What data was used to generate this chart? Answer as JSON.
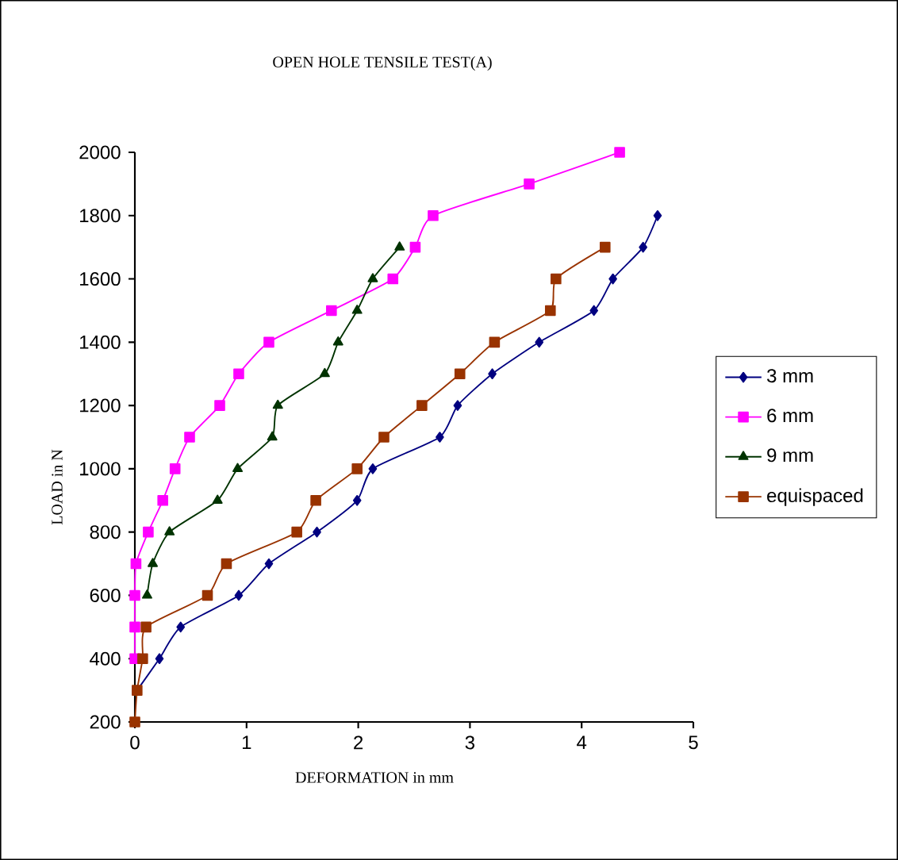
{
  "chart_data": {
    "type": "line",
    "title": "OPEN HOLE TENSILE TEST(A)",
    "xlabel": "DEFORMATION in mm",
    "ylabel": "LOAD in N",
    "xlim": [
      0,
      5
    ],
    "ylim": [
      200,
      2000
    ],
    "xticks": [
      0,
      1,
      2,
      3,
      4,
      5
    ],
    "yticks": [
      200,
      400,
      600,
      800,
      1000,
      1200,
      1400,
      1600,
      1800,
      2000
    ],
    "legend": "right",
    "grid": false,
    "series": [
      {
        "name": "3 mm",
        "color": "#000080",
        "marker": "diamond",
        "x": [
          0.02,
          0.22,
          0.41,
          0.93,
          1.2,
          1.63,
          1.99,
          2.13,
          2.73,
          2.89,
          3.2,
          3.62,
          4.11,
          4.28,
          4.55,
          4.68
        ],
        "values": [
          300,
          400,
          500,
          600,
          700,
          800,
          900,
          1000,
          1100,
          1200,
          1300,
          1400,
          1500,
          1600,
          1700,
          1800
        ]
      },
      {
        "name": "6 mm",
        "color": "#ff00ff",
        "marker": "square",
        "x": [
          0,
          0,
          0,
          0.01,
          0.12,
          0.25,
          0.36,
          0.49,
          0.76,
          0.93,
          1.2,
          1.76,
          2.31,
          2.51,
          2.67,
          3.53,
          4.34
        ],
        "values": [
          400,
          500,
          600,
          700,
          800,
          900,
          1000,
          1100,
          1200,
          1300,
          1400,
          1500,
          1600,
          1700,
          1800,
          1900,
          2000
        ]
      },
      {
        "name": "9 mm",
        "color": "#003300",
        "marker": "triangle",
        "x": [
          0.11,
          0.16,
          0.31,
          0.74,
          0.92,
          1.23,
          1.28,
          1.7,
          1.82,
          1.99,
          2.13,
          2.37
        ],
        "values": [
          600,
          700,
          800,
          900,
          1000,
          1100,
          1200,
          1300,
          1400,
          1500,
          1600,
          1700
        ]
      },
      {
        "name": "equispaced",
        "color": "#993300",
        "marker": "square",
        "x": [
          0,
          0.02,
          0.07,
          0.1,
          0.65,
          0.82,
          1.45,
          1.62,
          1.99,
          2.23,
          2.57,
          2.91,
          3.22,
          3.72,
          3.77,
          4.21
        ],
        "values": [
          200,
          300,
          400,
          500,
          600,
          700,
          800,
          900,
          1000,
          1100,
          1200,
          1300,
          1400,
          1500,
          1600,
          1700
        ]
      }
    ]
  }
}
